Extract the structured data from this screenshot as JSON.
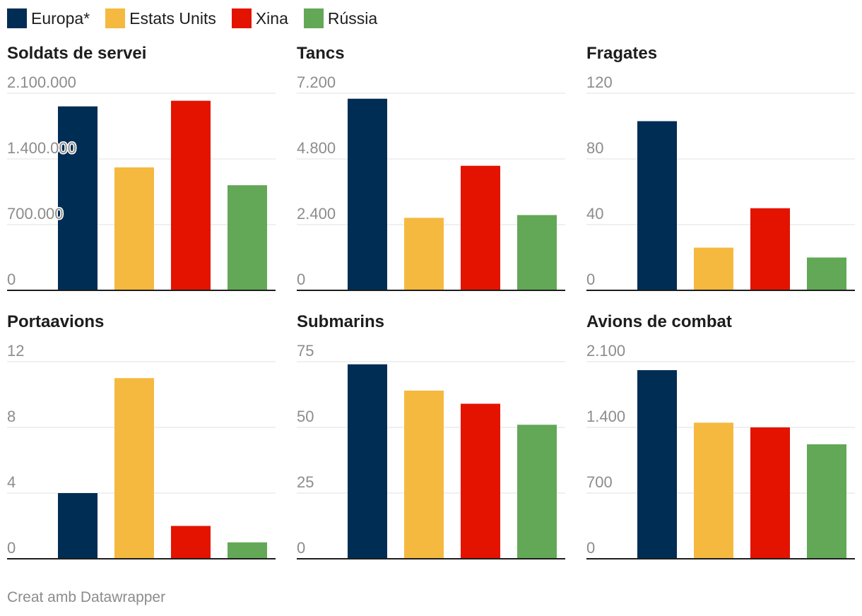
{
  "colors": {
    "europa": "#002d54",
    "usa": "#f5b940",
    "xina": "#e31300",
    "russia": "#62a857",
    "grid": "#e2e2e2",
    "axis": "#1d1d1d",
    "tick": "#8c8c8c"
  },
  "legend": [
    {
      "label": "Europa*",
      "color": "#002d54"
    },
    {
      "label": "Estats Units",
      "color": "#f5b940"
    },
    {
      "label": "Xina",
      "color": "#e31300"
    },
    {
      "label": "Rússia",
      "color": "#62a857"
    }
  ],
  "footer": "Creat amb Datawrapper",
  "chart_data": [
    {
      "type": "bar",
      "title": "Soldats de servei",
      "categories": [
        "Europa*",
        "Estats Units",
        "Xina",
        "Rússia"
      ],
      "values": [
        1960000,
        1310000,
        2020000,
        1120000
      ],
      "ylim": [
        0,
        2100000
      ],
      "ticks": [
        0,
        700000,
        1400000,
        2100000
      ],
      "tick_labels": [
        "0",
        "700.000",
        "1.400.000",
        "2.100.000"
      ]
    },
    {
      "type": "bar",
      "title": "Tancs",
      "categories": [
        "Europa*",
        "Estats Units",
        "Xina",
        "Rússia"
      ],
      "values": [
        7000,
        2650,
        4550,
        2750
      ],
      "ylim": [
        0,
        7200
      ],
      "ticks": [
        0,
        2400,
        4800,
        7200
      ],
      "tick_labels": [
        "0",
        "2.400",
        "4.800",
        "7.200"
      ]
    },
    {
      "type": "bar",
      "title": "Fragates",
      "categories": [
        "Europa*",
        "Estats Units",
        "Xina",
        "Rússia"
      ],
      "values": [
        103,
        26,
        50,
        20
      ],
      "ylim": [
        0,
        120
      ],
      "ticks": [
        0,
        40,
        80,
        120
      ],
      "tick_labels": [
        "0",
        "40",
        "80",
        "120"
      ]
    },
    {
      "type": "bar",
      "title": "Portaavions",
      "categories": [
        "Europa*",
        "Estats Units",
        "Xina",
        "Rússia"
      ],
      "values": [
        4,
        11,
        2,
        1
      ],
      "ylim": [
        0,
        12
      ],
      "ticks": [
        0,
        4,
        8,
        12
      ],
      "tick_labels": [
        "0",
        "4",
        "8",
        "12"
      ]
    },
    {
      "type": "bar",
      "title": "Submarins",
      "categories": [
        "Europa*",
        "Estats Units",
        "Xina",
        "Rússia"
      ],
      "values": [
        74,
        64,
        59,
        51
      ],
      "ylim": [
        0,
        75
      ],
      "ticks": [
        0,
        25,
        50,
        75
      ],
      "tick_labels": [
        "0",
        "25",
        "50",
        "75"
      ]
    },
    {
      "type": "bar",
      "title": "Avions de combat",
      "categories": [
        "Europa*",
        "Estats Units",
        "Xina",
        "Rússia"
      ],
      "values": [
        2010,
        1450,
        1400,
        1220
      ],
      "ylim": [
        0,
        2100
      ],
      "ticks": [
        0,
        700,
        1400,
        2100
      ],
      "tick_labels": [
        "0",
        "700",
        "1.400",
        "2.100"
      ]
    }
  ]
}
